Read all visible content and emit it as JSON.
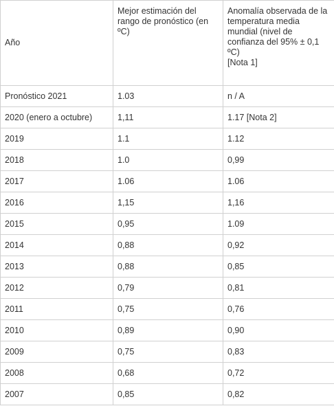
{
  "table": {
    "headers": {
      "col1": "Año",
      "col2": [
        "Mejor estimación del",
        "rango de pronóstico (en",
        "ºC)"
      ],
      "col3": [
        "Anomalía observada de la",
        "temperatura media",
        "mundial (nivel de",
        "confianza del 95% ± 0,1",
        "ºC)",
        "[Nota 1]"
      ]
    },
    "rows": [
      {
        "year": "Pronóstico 2021",
        "forecast": "1.03",
        "observed": "n / A"
      },
      {
        "year": "2020 (enero a octubre)",
        "forecast": "1,11",
        "observed": "1.17 [Nota 2]"
      },
      {
        "year": "2019",
        "forecast": "1.1",
        "observed": "1.12"
      },
      {
        "year": "2018",
        "forecast": "1.0",
        "observed": "0,99"
      },
      {
        "year": "2017",
        "forecast": "1.06",
        "observed": "1.06"
      },
      {
        "year": "2016",
        "forecast": "1,15",
        "observed": "1,16"
      },
      {
        "year": "2015",
        "forecast": "0,95",
        "observed": "1.09"
      },
      {
        "year": "2014",
        "forecast": "0,88",
        "observed": "0,92"
      },
      {
        "year": "2013",
        "forecast": "0,88",
        "observed": "0,85"
      },
      {
        "year": "2012",
        "forecast": "0,79",
        "observed": "0,81"
      },
      {
        "year": "2011",
        "forecast": "0,75",
        "observed": "0,76"
      },
      {
        "year": "2010",
        "forecast": "0,89",
        "observed": "0,90"
      },
      {
        "year": "2009",
        "forecast": "0,75",
        "observed": "0,83"
      },
      {
        "year": "2008",
        "forecast": "0,68",
        "observed": "0,72"
      },
      {
        "year": "2007",
        "forecast": "0,85",
        "observed": "0,82"
      }
    ]
  }
}
